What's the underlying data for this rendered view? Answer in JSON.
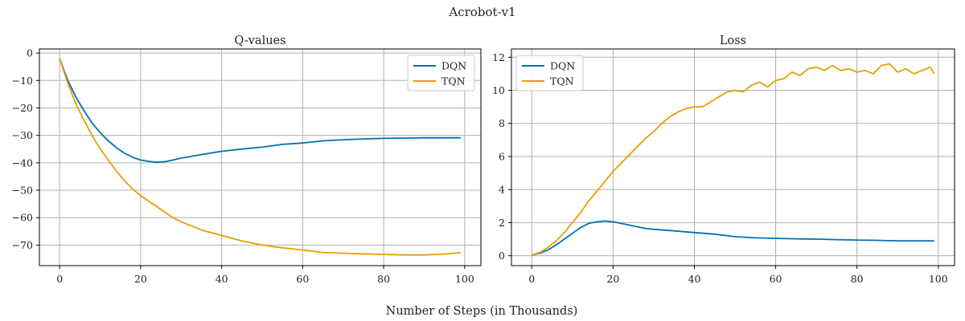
{
  "figure": {
    "suptitle": "Acrobot-v1",
    "xlabel": "Number of Steps (in Thousands)"
  },
  "colors": {
    "DQN": "#0072b2",
    "TQN": "#e69f00",
    "grid": "#b0b0b0"
  },
  "chart_data": [
    {
      "type": "line",
      "title": "Q-values",
      "xlim": [
        -5,
        104
      ],
      "ylim": [
        -77.5,
        1.5
      ],
      "xticks": [
        0,
        20,
        40,
        60,
        80,
        100
      ],
      "yticks": [
        0,
        -10,
        -20,
        -30,
        -40,
        -50,
        -60,
        -70
      ],
      "grid": true,
      "legend_position": "top-right",
      "series": [
        {
          "name": "DQN",
          "x": [
            0,
            2,
            4,
            6,
            8,
            10,
            12,
            14,
            16,
            18,
            20,
            22,
            24,
            26,
            28,
            30,
            35,
            40,
            45,
            50,
            55,
            60,
            65,
            70,
            75,
            80,
            85,
            90,
            95,
            99
          ],
          "y": [
            -2,
            -10,
            -16,
            -21,
            -25.5,
            -29,
            -32,
            -34.5,
            -36.5,
            -38,
            -39,
            -39.5,
            -39.8,
            -39.6,
            -39,
            -38.3,
            -37,
            -35.8,
            -35,
            -34.3,
            -33.3,
            -32.8,
            -32,
            -31.6,
            -31.3,
            -31.1,
            -31,
            -30.9,
            -30.9,
            -30.9
          ]
        },
        {
          "name": "TQN",
          "x": [
            0,
            2,
            4,
            6,
            8,
            10,
            12,
            14,
            16,
            18,
            20,
            22,
            24,
            26,
            28,
            30,
            35,
            40,
            45,
            50,
            55,
            60,
            65,
            70,
            75,
            80,
            85,
            90,
            95,
            99
          ],
          "y": [
            -2,
            -11,
            -18.5,
            -24.5,
            -30,
            -35,
            -39,
            -43,
            -46.5,
            -49.5,
            -52,
            -54,
            -56,
            -58,
            -60,
            -61.5,
            -64.5,
            -66.5,
            -68.5,
            -70,
            -71,
            -71.8,
            -72.7,
            -73,
            -73.2,
            -73.4,
            -73.6,
            -73.6,
            -73.3,
            -72.8
          ]
        }
      ]
    },
    {
      "type": "line",
      "title": "Loss",
      "xlim": [
        -5,
        104
      ],
      "ylim": [
        -0.6,
        12.5
      ],
      "xticks": [
        0,
        20,
        40,
        60,
        80,
        100
      ],
      "yticks": [
        0,
        2,
        4,
        6,
        8,
        10,
        12
      ],
      "grid": true,
      "legend_position": "top-left",
      "series": [
        {
          "name": "DQN",
          "x": [
            0,
            2,
            4,
            6,
            8,
            10,
            12,
            14,
            16,
            18,
            20,
            22,
            24,
            26,
            28,
            30,
            35,
            40,
            45,
            50,
            55,
            60,
            65,
            70,
            75,
            80,
            85,
            90,
            95,
            99
          ],
          "y": [
            0.05,
            0.15,
            0.35,
            0.65,
            1.0,
            1.35,
            1.7,
            1.95,
            2.05,
            2.1,
            2.05,
            1.95,
            1.85,
            1.75,
            1.65,
            1.6,
            1.5,
            1.4,
            1.3,
            1.15,
            1.08,
            1.05,
            1.02,
            1.0,
            0.97,
            0.95,
            0.93,
            0.9,
            0.9,
            0.9
          ]
        },
        {
          "name": "TQN",
          "x": [
            0,
            2,
            4,
            6,
            8,
            10,
            12,
            14,
            16,
            18,
            20,
            22,
            24,
            26,
            28,
            30,
            32,
            34,
            36,
            38,
            40,
            42,
            44,
            46,
            48,
            50,
            52,
            54,
            56,
            58,
            60,
            62,
            64,
            66,
            68,
            70,
            72,
            74,
            76,
            78,
            80,
            82,
            84,
            86,
            88,
            90,
            92,
            94,
            96,
            98,
            99
          ],
          "y": [
            0.05,
            0.2,
            0.5,
            0.9,
            1.4,
            2.0,
            2.6,
            3.3,
            3.9,
            4.5,
            5.1,
            5.6,
            6.1,
            6.6,
            7.1,
            7.5,
            8.0,
            8.4,
            8.7,
            8.9,
            9.0,
            9.0,
            9.3,
            9.6,
            9.9,
            10.0,
            9.9,
            10.3,
            10.5,
            10.2,
            10.6,
            10.7,
            11.1,
            10.9,
            11.3,
            11.4,
            11.2,
            11.5,
            11.2,
            11.3,
            11.1,
            11.2,
            11.0,
            11.5,
            11.6,
            11.1,
            11.3,
            11.0,
            11.2,
            11.4,
            11.0
          ]
        }
      ]
    }
  ]
}
